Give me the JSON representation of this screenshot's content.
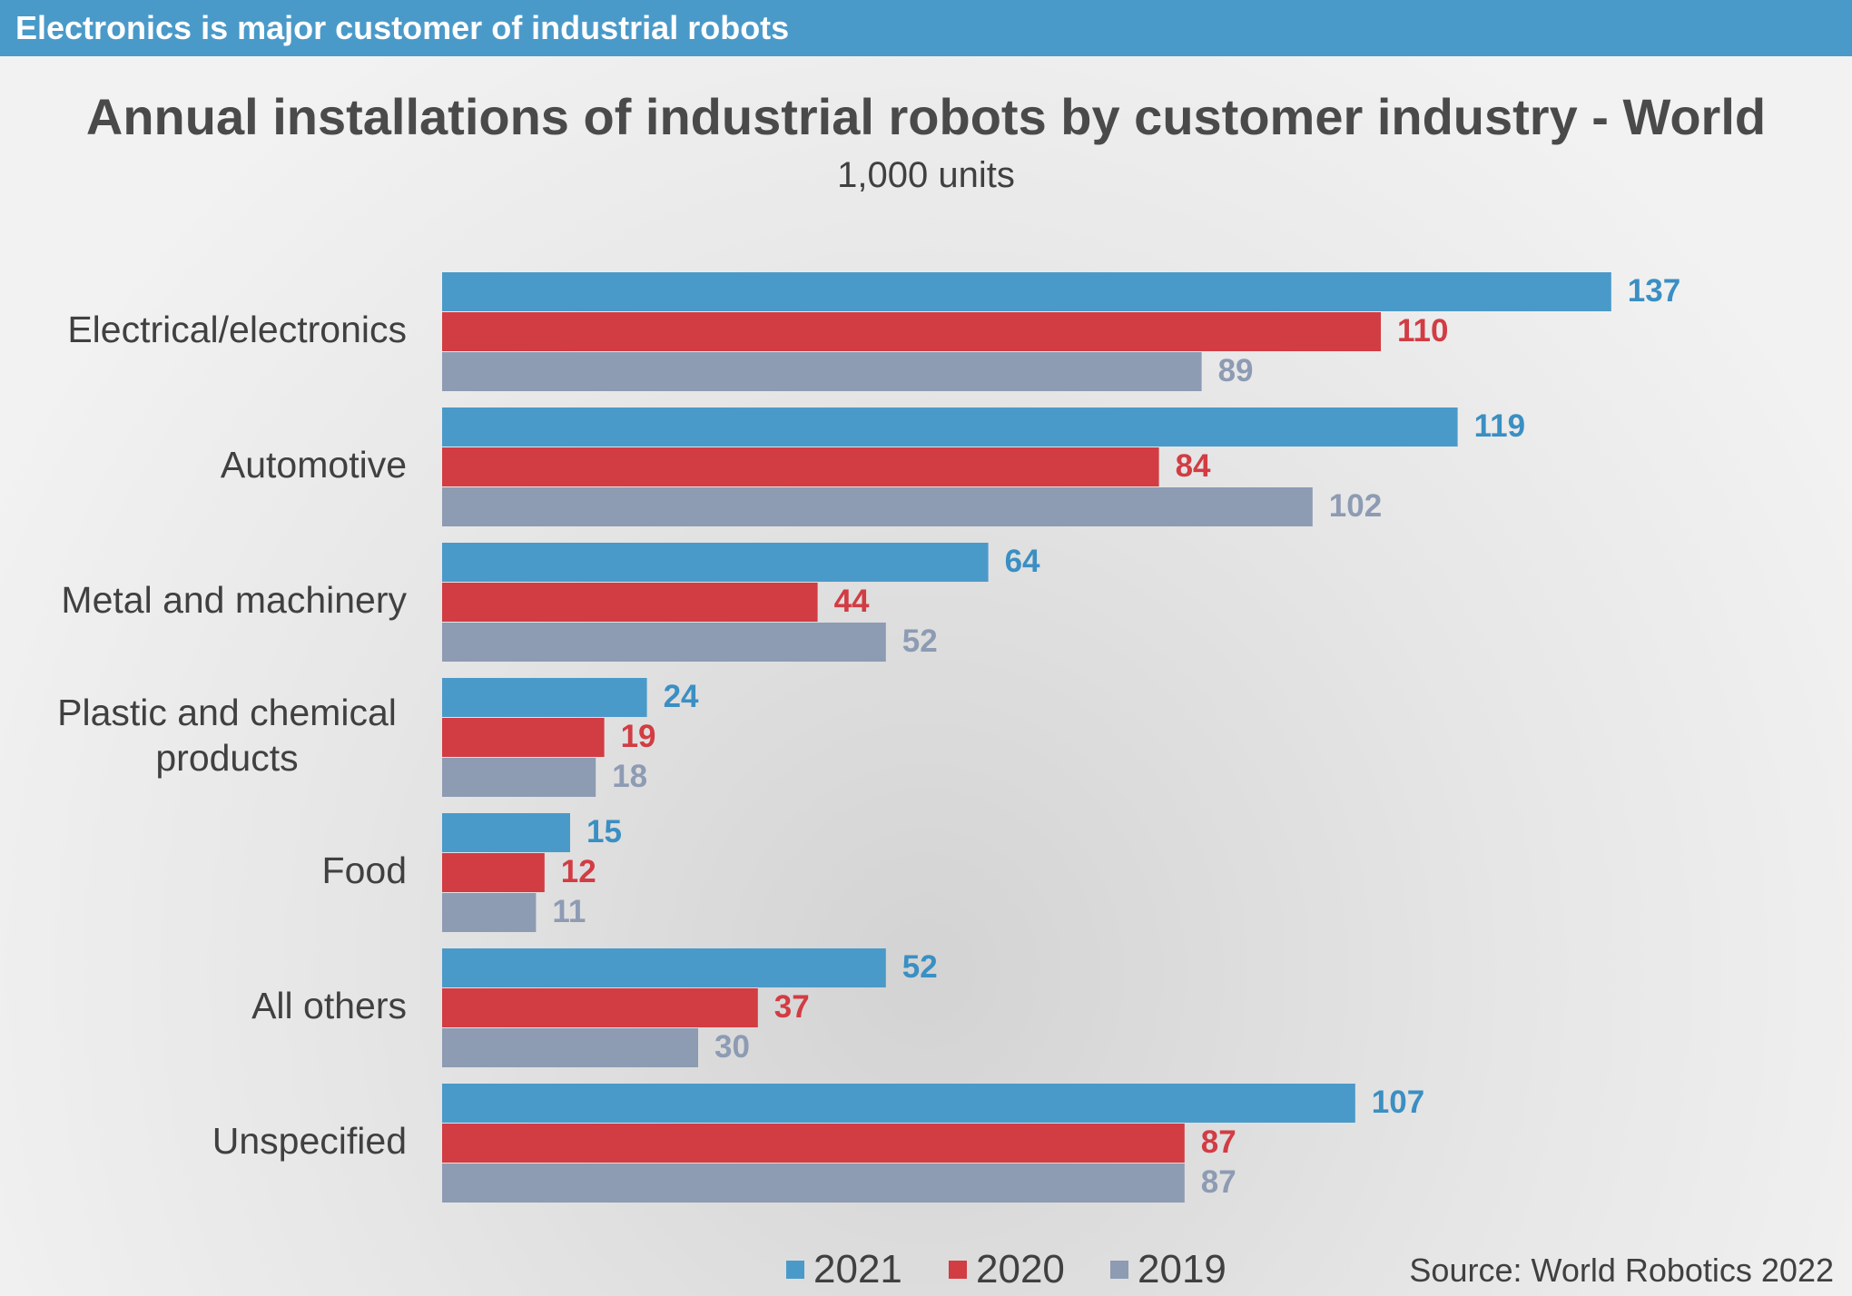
{
  "banner": {
    "title": "Electronics is major customer of industrial robots"
  },
  "source": "Source: World Robotics 2022",
  "chart_data": {
    "type": "bar",
    "orientation": "horizontal",
    "title": "Annual installations of industrial robots by customer industry - World",
    "subtitle": "1,000 units",
    "categories": [
      "Electrical/electronics",
      "Automotive",
      "Metal and machinery",
      "Plastic and chemical products",
      "Food",
      "All others",
      "Unspecified"
    ],
    "category_label_lines": [
      [
        "Electrical/electronics"
      ],
      [
        "Automotive"
      ],
      [
        "Metal and machinery"
      ],
      [
        "Plastic and chemical",
        "products"
      ],
      [
        "Food"
      ],
      [
        "All others"
      ],
      [
        "Unspecified"
      ]
    ],
    "series": [
      {
        "name": "2021",
        "color": "#4a9ac9",
        "label_color": "#3a8fc3",
        "values": [
          137,
          119,
          64,
          24,
          15,
          52,
          107
        ]
      },
      {
        "name": "2020",
        "color": "#d23c43",
        "label_color": "#d23c43",
        "values": [
          110,
          84,
          44,
          19,
          12,
          37,
          87
        ]
      },
      {
        "name": "2019",
        "color": "#8d9bb3",
        "label_color": "#8d9bb3",
        "values": [
          89,
          102,
          52,
          18,
          11,
          30,
          87
        ]
      }
    ],
    "xlim": [
      0,
      137
    ],
    "grid": false,
    "data_labels": true,
    "legend_position": "bottom"
  }
}
